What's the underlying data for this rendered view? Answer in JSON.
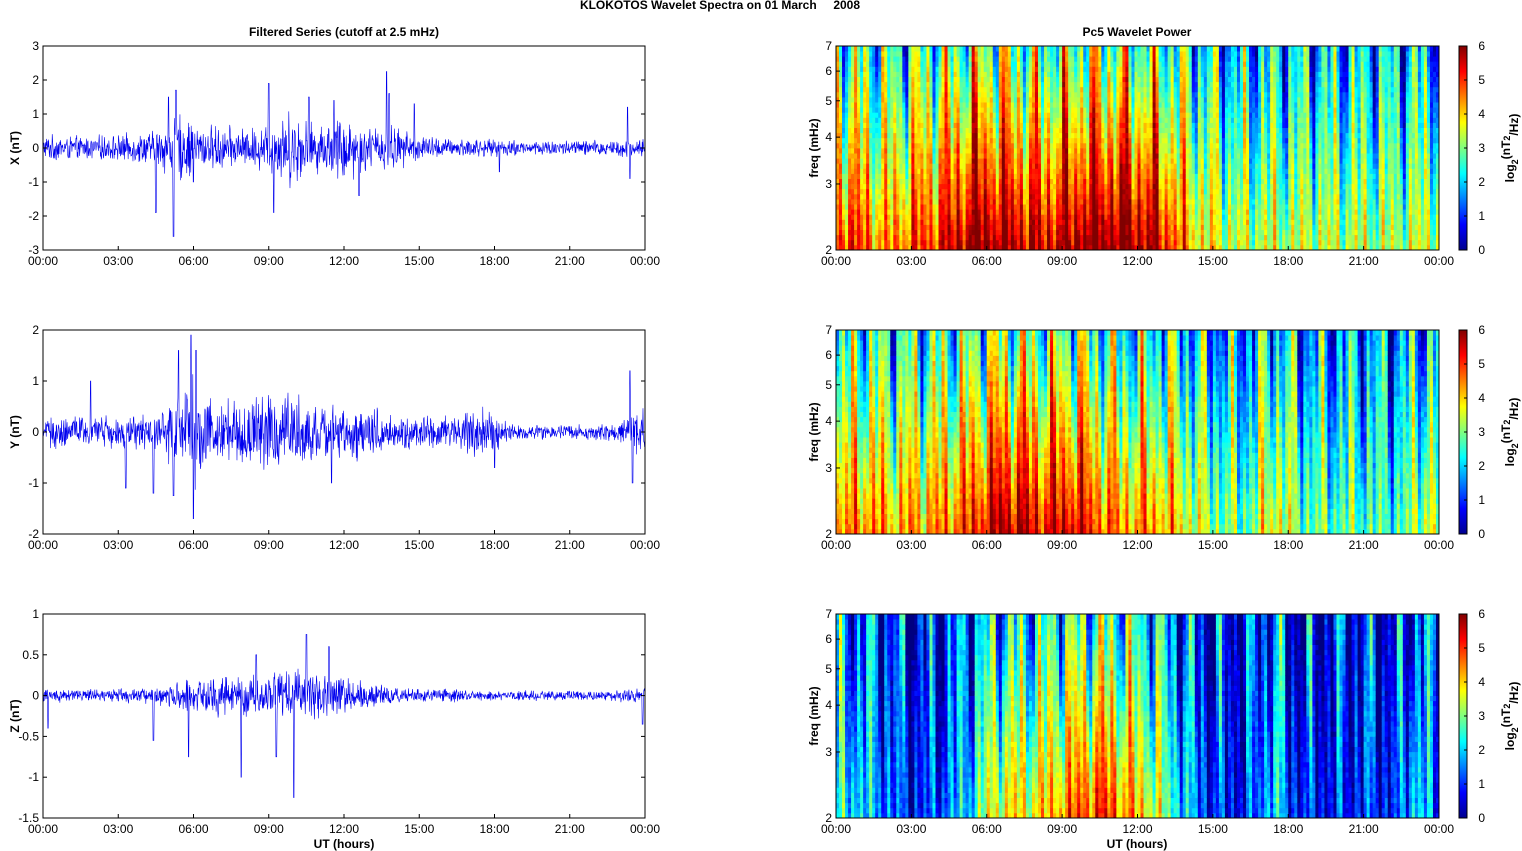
{
  "figure": {
    "suptitle": "KLOKOTOS Wavelet Spectra on 01 March     2008",
    "left_title": "Filtered Series (cutoff at 2.5 mHz)",
    "right_title": "Pc5 Wavelet Power",
    "xlabel": "UT (hours)"
  },
  "chart_data": [
    {
      "type": "line",
      "component": "X",
      "ylabel": "X (nT)",
      "xlim": [
        0,
        24
      ],
      "ylim": [
        -3,
        3
      ],
      "x_ticks": [
        "00:00",
        "03:00",
        "06:00",
        "09:00",
        "12:00",
        "15:00",
        "18:00",
        "21:00",
        "00:00"
      ],
      "y_ticks": [
        "-3",
        "-2",
        "-1",
        "0",
        "1",
        "2",
        "3"
      ],
      "line_color": "#0000ee",
      "activity_envelope": [
        0.28,
        0.3,
        0.28,
        0.27,
        0.28,
        0.3,
        0.3,
        0.33,
        0.36,
        0.42,
        0.65,
        0.8,
        0.6,
        0.5,
        0.55,
        0.48,
        0.45,
        0.5,
        0.6,
        0.8,
        0.9,
        0.7,
        0.55,
        0.65,
        0.85,
        0.65,
        0.48,
        0.55,
        0.55,
        0.4,
        0.3,
        0.28,
        0.22,
        0.22,
        0.25,
        0.22,
        0.18,
        0.22,
        0.18,
        0.15,
        0.22,
        0.18,
        0.18,
        0.2,
        0.18,
        0.22,
        0.2,
        0.22,
        0.2
      ],
      "spikes": [
        [
          4.5,
          -1.9
        ],
        [
          5.0,
          1.5
        ],
        [
          5.2,
          -2.6
        ],
        [
          5.3,
          1.7
        ],
        [
          6.0,
          -1.0
        ],
        [
          9.0,
          1.9
        ],
        [
          9.2,
          -1.9
        ],
        [
          10.6,
          1.5
        ],
        [
          11.6,
          1.4
        ],
        [
          12.6,
          -1.4
        ],
        [
          13.7,
          2.25
        ],
        [
          13.8,
          1.6
        ],
        [
          14.8,
          1.3
        ],
        [
          18.2,
          -0.7
        ],
        [
          23.3,
          1.2
        ],
        [
          23.4,
          -0.9
        ]
      ]
    },
    {
      "type": "heatmap",
      "component": "X",
      "ylabel": "freq (mHz)",
      "xlim": [
        0,
        24
      ],
      "ylim": [
        2,
        7
      ],
      "yscale": "log",
      "x_ticks": [
        "00:00",
        "03:00",
        "06:00",
        "09:00",
        "12:00",
        "15:00",
        "18:00",
        "21:00",
        "00:00"
      ],
      "y_ticks": [
        "2",
        "3",
        "4",
        "5",
        "6",
        "7"
      ],
      "colorbar_label": "log2(nT²/Hz)",
      "colorbar_ticks": [
        "0",
        "1",
        "2",
        "3",
        "4",
        "5",
        "6"
      ],
      "clim": [
        0,
        6
      ],
      "colormap": "jet",
      "time_profile": [
        4.8,
        5.0,
        4.6,
        4.3,
        4.0,
        4.3,
        4.6,
        4.8,
        5.0,
        5.2,
        5.6,
        6.0,
        6.0,
        5.8,
        5.7,
        5.5,
        5.3,
        5.4,
        5.6,
        5.8,
        6.0,
        6.0,
        6.0,
        6.0,
        5.8,
        5.6,
        5.3,
        4.6,
        4.0,
        3.6,
        3.4,
        3.2,
        3.0,
        3.0,
        3.1,
        3.0,
        3.0,
        3.0,
        3.1,
        3.0,
        3.0,
        3.0,
        2.9,
        2.9,
        2.9,
        2.9,
        3.0,
        3.2,
        3.0
      ]
    },
    {
      "type": "line",
      "component": "Y",
      "ylabel": "Y (nT)",
      "xlim": [
        0,
        24
      ],
      "ylim": [
        -2,
        2
      ],
      "x_ticks": [
        "00:00",
        "03:00",
        "06:00",
        "09:00",
        "12:00",
        "15:00",
        "18:00",
        "21:00",
        "00:00"
      ],
      "y_ticks": [
        "-2",
        "-1",
        "0",
        "1",
        "2"
      ],
      "line_color": "#0000ee",
      "activity_envelope": [
        0.22,
        0.25,
        0.28,
        0.25,
        0.22,
        0.25,
        0.26,
        0.25,
        0.28,
        0.3,
        0.5,
        0.6,
        0.9,
        0.65,
        0.55,
        0.5,
        0.52,
        0.55,
        0.58,
        0.6,
        0.62,
        0.5,
        0.45,
        0.4,
        0.42,
        0.42,
        0.4,
        0.35,
        0.3,
        0.25,
        0.25,
        0.25,
        0.25,
        0.3,
        0.38,
        0.38,
        0.3,
        0.15,
        0.12,
        0.12,
        0.12,
        0.12,
        0.12,
        0.12,
        0.12,
        0.12,
        0.15,
        0.3,
        0.35
      ],
      "spikes": [
        [
          1.9,
          1.0
        ],
        [
          3.3,
          -1.1
        ],
        [
          4.4,
          -1.2
        ],
        [
          5.2,
          -1.25
        ],
        [
          5.4,
          1.6
        ],
        [
          5.9,
          1.9
        ],
        [
          6.0,
          -1.7
        ],
        [
          6.1,
          1.6
        ],
        [
          11.5,
          -1.0
        ],
        [
          18.0,
          -0.7
        ],
        [
          23.4,
          1.2
        ],
        [
          23.5,
          -1.0
        ]
      ]
    },
    {
      "type": "heatmap",
      "component": "Y",
      "ylabel": "freq (mHz)",
      "xlim": [
        0,
        24
      ],
      "ylim": [
        2,
        7
      ],
      "yscale": "log",
      "x_ticks": [
        "00:00",
        "03:00",
        "06:00",
        "09:00",
        "12:00",
        "15:00",
        "18:00",
        "21:00",
        "00:00"
      ],
      "y_ticks": [
        "2",
        "3",
        "4",
        "5",
        "6",
        "7"
      ],
      "colorbar_label": "log2(nT²/Hz)",
      "colorbar_ticks": [
        "0",
        "1",
        "2",
        "3",
        "4",
        "5",
        "6"
      ],
      "clim": [
        0,
        6
      ],
      "colormap": "jet",
      "time_profile": [
        3.8,
        4.2,
        4.4,
        4.2,
        4.0,
        3.8,
        4.2,
        4.0,
        4.2,
        4.4,
        4.6,
        4.8,
        5.4,
        5.6,
        5.6,
        5.5,
        5.2,
        5.2,
        5.4,
        5.4,
        5.0,
        4.6,
        4.3,
        4.2,
        4.0,
        4.3,
        4.0,
        3.8,
        3.4,
        3.0,
        2.8,
        2.6,
        2.4,
        2.6,
        3.2,
        3.6,
        3.0,
        2.6,
        2.4,
        2.4,
        2.4,
        2.4,
        2.3,
        2.2,
        2.2,
        2.2,
        2.8,
        3.2,
        3.0
      ]
    },
    {
      "type": "line",
      "component": "Z",
      "ylabel": "Z (nT)",
      "xlim": [
        0,
        24
      ],
      "ylim": [
        -1.5,
        1
      ],
      "x_ticks": [
        "00:00",
        "03:00",
        "06:00",
        "09:00",
        "12:00",
        "15:00",
        "18:00",
        "21:00",
        "00:00"
      ],
      "y_ticks": [
        "-1.5",
        "-1",
        "-0.5",
        "0",
        "0.5",
        "1"
      ],
      "line_color": "#0000ee",
      "activity_envelope": [
        0.07,
        0.07,
        0.06,
        0.06,
        0.06,
        0.06,
        0.07,
        0.07,
        0.08,
        0.1,
        0.12,
        0.14,
        0.16,
        0.18,
        0.2,
        0.2,
        0.22,
        0.22,
        0.24,
        0.25,
        0.24,
        0.24,
        0.22,
        0.2,
        0.18,
        0.15,
        0.12,
        0.1,
        0.08,
        0.07,
        0.06,
        0.06,
        0.06,
        0.06,
        0.05,
        0.05,
        0.05,
        0.04,
        0.05,
        0.05,
        0.05,
        0.05,
        0.05,
        0.05,
        0.05,
        0.05,
        0.06,
        0.07,
        0.07
      ],
      "spikes": [
        [
          0.2,
          -0.4
        ],
        [
          4.4,
          -0.55
        ],
        [
          5.8,
          -0.75
        ],
        [
          7.9,
          -1.0
        ],
        [
          8.5,
          0.5
        ],
        [
          9.3,
          -0.75
        ],
        [
          10.0,
          -1.25
        ],
        [
          10.5,
          0.75
        ],
        [
          11.4,
          0.6
        ],
        [
          23.9,
          -0.35
        ]
      ]
    },
    {
      "type": "heatmap",
      "component": "Z",
      "ylabel": "freq (mHz)",
      "xlim": [
        0,
        24
      ],
      "ylim": [
        2,
        7
      ],
      "yscale": "log",
      "x_ticks": [
        "00:00",
        "03:00",
        "06:00",
        "09:00",
        "12:00",
        "15:00",
        "18:00",
        "21:00",
        "00:00"
      ],
      "y_ticks": [
        "2",
        "3",
        "4",
        "5",
        "6",
        "7"
      ],
      "colorbar_label": "log2(nT²/Hz)",
      "colorbar_ticks": [
        "0",
        "1",
        "2",
        "3",
        "4",
        "5",
        "6"
      ],
      "clim": [
        0,
        6
      ],
      "colormap": "jet",
      "time_profile": [
        1.8,
        1.8,
        1.6,
        1.3,
        1.0,
        0.5,
        0.3,
        0.3,
        0.6,
        1.0,
        1.2,
        2.0,
        3.0,
        3.4,
        3.6,
        3.4,
        3.6,
        3.8,
        4.2,
        4.4,
        4.6,
        4.8,
        4.6,
        4.2,
        3.8,
        3.4,
        2.8,
        2.0,
        1.4,
        0.8,
        0.4,
        0.3,
        0.3,
        0.3,
        1.2,
        1.8,
        0.6,
        0.3,
        0.3,
        0.3,
        0.3,
        0.3,
        0.6,
        0.4,
        0.3,
        0.5,
        1.8,
        1.2,
        0.3
      ]
    }
  ]
}
